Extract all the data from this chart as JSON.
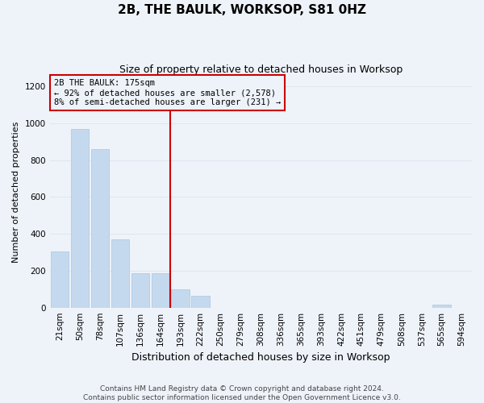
{
  "title": "2B, THE BAULK, WORKSOP, S81 0HZ",
  "subtitle": "Size of property relative to detached houses in Worksop",
  "xlabel": "Distribution of detached houses by size in Worksop",
  "ylabel": "Number of detached properties",
  "footer_line1": "Contains HM Land Registry data © Crown copyright and database right 2024.",
  "footer_line2": "Contains public sector information licensed under the Open Government Licence v3.0.",
  "bin_labels": [
    "21sqm",
    "50sqm",
    "78sqm",
    "107sqm",
    "136sqm",
    "164sqm",
    "193sqm",
    "222sqm",
    "250sqm",
    "279sqm",
    "308sqm",
    "336sqm",
    "365sqm",
    "393sqm",
    "422sqm",
    "451sqm",
    "479sqm",
    "508sqm",
    "537sqm",
    "565sqm",
    "594sqm"
  ],
  "bar_heights": [
    305,
    970,
    860,
    370,
    185,
    185,
    100,
    65,
    0,
    0,
    0,
    0,
    0,
    0,
    0,
    0,
    0,
    0,
    0,
    15,
    0
  ],
  "bar_color": "#c5d9ee",
  "bar_edge_color": "#a8c4e0",
  "grid_color": "#dde6f0",
  "vline_color": "#cc0000",
  "annotation_line1": "2B THE BAULK: 175sqm",
  "annotation_line2": "← 92% of detached houses are smaller (2,578)",
  "annotation_line3": "8% of semi-detached houses are larger (231) →",
  "ylim": [
    0,
    1250
  ],
  "yticks": [
    0,
    200,
    400,
    600,
    800,
    1000,
    1200
  ],
  "background_color": "#eef3fa",
  "title_fontsize": 11,
  "subtitle_fontsize": 9,
  "xlabel_fontsize": 9,
  "ylabel_fontsize": 8,
  "tick_fontsize": 7.5,
  "footer_fontsize": 6.5
}
